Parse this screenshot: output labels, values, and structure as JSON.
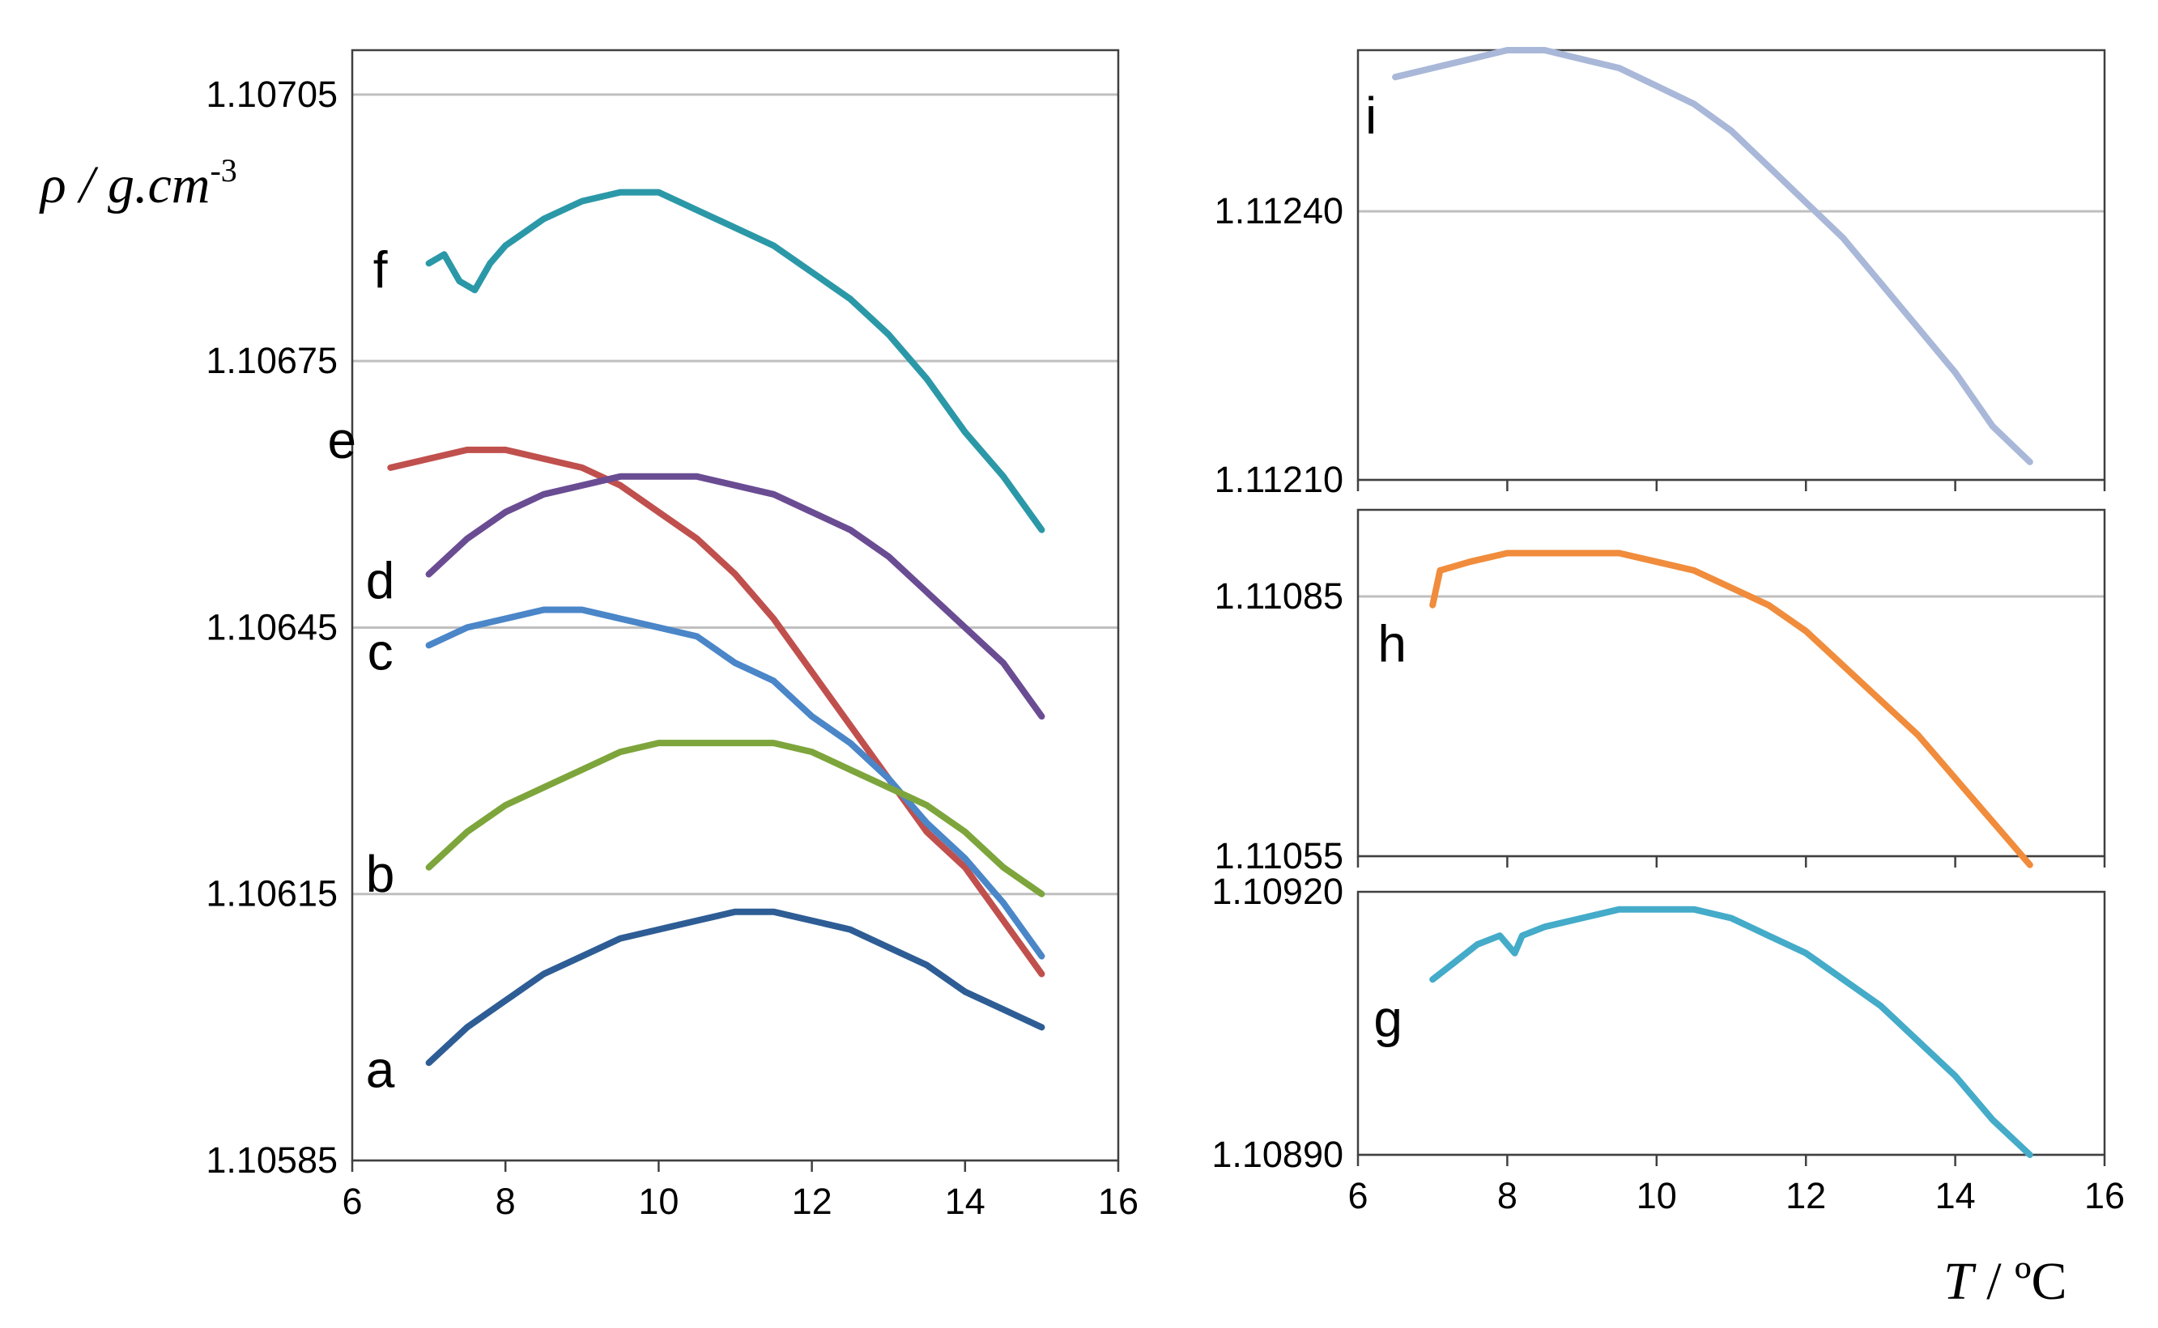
{
  "figure": {
    "ylabel": "ρ / g.cm",
    "ylabel_exp": "-3",
    "xlabel_var": "T",
    "xlabel_unit": " / ºC"
  },
  "chart_data": [
    {
      "id": "main",
      "type": "line",
      "title": "",
      "xlabel": "",
      "ylabel": "ρ / g.cm-3",
      "xlim": [
        6,
        16
      ],
      "ylim": [
        1.10585,
        1.1071
      ],
      "xticks": [
        6,
        8,
        10,
        12,
        14,
        16
      ],
      "yticks": [
        1.10585,
        1.10615,
        1.10645,
        1.10675,
        1.10705
      ],
      "ytick_labels": [
        "1.10585",
        "1.10615",
        "1.10645",
        "1.10675",
        "1.10705"
      ],
      "grid": true,
      "series": [
        {
          "name": "f",
          "label": "f",
          "color": "#2b98a8",
          "x": [
            7.0,
            7.2,
            7.4,
            7.6,
            7.8,
            8.0,
            8.5,
            9.0,
            9.5,
            10.0,
            10.5,
            11.0,
            11.5,
            12.0,
            12.5,
            13.0,
            13.5,
            14.0,
            14.5,
            15.0
          ],
          "y": [
            1.10686,
            1.10687,
            1.10684,
            1.10683,
            1.10686,
            1.10688,
            1.10691,
            1.10693,
            1.10694,
            1.10694,
            1.10692,
            1.1069,
            1.10688,
            1.10685,
            1.10682,
            1.10678,
            1.10673,
            1.10667,
            1.10662,
            1.10656
          ]
        },
        {
          "name": "e",
          "label": "e",
          "color": "#c0504d",
          "x": [
            6.5,
            7.0,
            7.5,
            8.0,
            8.5,
            9.0,
            9.5,
            10.0,
            10.5,
            11.0,
            11.5,
            12.0,
            12.5,
            13.0,
            13.5,
            14.0,
            14.5,
            15.0
          ],
          "y": [
            1.10663,
            1.10664,
            1.10665,
            1.10665,
            1.10664,
            1.10663,
            1.10661,
            1.10658,
            1.10655,
            1.10651,
            1.10646,
            1.1064,
            1.10634,
            1.10628,
            1.10622,
            1.10618,
            1.10612,
            1.10606
          ]
        },
        {
          "name": "d",
          "label": "d",
          "color": "#6a4c93",
          "x": [
            7.0,
            7.5,
            8.0,
            8.5,
            9.0,
            9.5,
            10.0,
            10.5,
            11.0,
            11.5,
            12.0,
            12.5,
            13.0,
            13.5,
            14.0,
            14.5,
            15.0
          ],
          "y": [
            1.10651,
            1.10655,
            1.10658,
            1.1066,
            1.10661,
            1.10662,
            1.10662,
            1.10662,
            1.10661,
            1.1066,
            1.10658,
            1.10656,
            1.10653,
            1.10649,
            1.10645,
            1.10641,
            1.10635
          ]
        },
        {
          "name": "c",
          "label": "c",
          "color": "#4a86c8",
          "x": [
            7.0,
            7.5,
            8.0,
            8.5,
            9.0,
            9.5,
            10.0,
            10.5,
            11.0,
            11.5,
            12.0,
            12.5,
            13.0,
            13.5,
            14.0,
            14.5,
            15.0
          ],
          "y": [
            1.10643,
            1.10645,
            1.10646,
            1.10647,
            1.10647,
            1.10646,
            1.10645,
            1.10644,
            1.10641,
            1.10639,
            1.10635,
            1.10632,
            1.10628,
            1.10623,
            1.10619,
            1.10614,
            1.10608
          ]
        },
        {
          "name": "b",
          "label": "b",
          "color": "#7da53c",
          "x": [
            7.0,
            7.5,
            8.0,
            8.5,
            9.0,
            9.5,
            10.0,
            10.5,
            11.0,
            11.5,
            12.0,
            12.5,
            13.0,
            13.5,
            14.0,
            14.5,
            15.0
          ],
          "y": [
            1.10618,
            1.10622,
            1.10625,
            1.10627,
            1.10629,
            1.10631,
            1.10632,
            1.10632,
            1.10632,
            1.10632,
            1.10631,
            1.10629,
            1.10627,
            1.10625,
            1.10622,
            1.10618,
            1.10615
          ]
        },
        {
          "name": "a",
          "label": "a",
          "color": "#2e5d95",
          "x": [
            7.0,
            7.5,
            8.0,
            8.5,
            9.0,
            9.5,
            10.0,
            10.5,
            11.0,
            11.5,
            12.0,
            12.5,
            13.0,
            13.5,
            14.0,
            14.5,
            15.0
          ],
          "y": [
            1.10596,
            1.106,
            1.10603,
            1.10606,
            1.10608,
            1.1061,
            1.10611,
            1.10612,
            1.10613,
            1.10613,
            1.10612,
            1.10611,
            1.10609,
            1.10607,
            1.10604,
            1.10602,
            1.106
          ]
        }
      ]
    },
    {
      "id": "i",
      "type": "line",
      "xlim": [
        6,
        16
      ],
      "ylim": [
        1.1121,
        1.11258
      ],
      "xticks": [
        6,
        8,
        10,
        12,
        14,
        16
      ],
      "yticks": [
        1.1121,
        1.1124
      ],
      "ytick_labels": [
        "1.11210",
        "1.11240"
      ],
      "grid": true,
      "series": [
        {
          "name": "i",
          "label": "i",
          "color": "#a9b8d8",
          "x": [
            6.5,
            7.0,
            7.5,
            8.0,
            8.5,
            9.0,
            9.5,
            10.0,
            10.5,
            11.0,
            11.5,
            12.0,
            12.5,
            13.0,
            13.5,
            14.0,
            14.5,
            15.0
          ],
          "y": [
            1.11255,
            1.11256,
            1.11257,
            1.11258,
            1.11258,
            1.11257,
            1.11256,
            1.11254,
            1.11252,
            1.11249,
            1.11245,
            1.11241,
            1.11237,
            1.11232,
            1.11227,
            1.11222,
            1.11216,
            1.11212
          ]
        }
      ]
    },
    {
      "id": "h",
      "type": "line",
      "xlim": [
        6,
        16
      ],
      "ylim": [
        1.11055,
        1.11095
      ],
      "xticks": [
        6,
        8,
        10,
        12,
        14,
        16
      ],
      "yticks": [
        1.11055,
        1.11085
      ],
      "ytick_labels": [
        "1.11055",
        "1.11085"
      ],
      "grid": true,
      "series": [
        {
          "name": "h",
          "label": "h",
          "color": "#f08c3c",
          "x": [
            7.0,
            7.1,
            7.5,
            8.0,
            8.5,
            9.0,
            9.5,
            10.0,
            10.5,
            11.0,
            11.5,
            12.0,
            12.5,
            13.0,
            13.5,
            14.0,
            14.5,
            15.0
          ],
          "y": [
            1.11084,
            1.11088,
            1.11089,
            1.1109,
            1.1109,
            1.1109,
            1.1109,
            1.11089,
            1.11088,
            1.11086,
            1.11084,
            1.11081,
            1.11077,
            1.11073,
            1.11069,
            1.11064,
            1.11059,
            1.11054
          ]
        }
      ]
    },
    {
      "id": "g",
      "type": "line",
      "xlim": [
        6,
        16
      ],
      "ylim": [
        1.1089,
        1.1092
      ],
      "xticks": [
        6,
        8,
        10,
        12,
        14,
        16
      ],
      "yticks": [
        1.1089,
        1.1092
      ],
      "ytick_labels": [
        "1.10890",
        "1.10920"
      ],
      "xtick_labels": [
        "6",
        "8",
        "10",
        "12",
        "14",
        "16"
      ],
      "grid": false,
      "series": [
        {
          "name": "g",
          "label": "g",
          "color": "#44abc9",
          "x": [
            7.0,
            7.3,
            7.6,
            7.9,
            8.1,
            8.2,
            8.5,
            9.0,
            9.5,
            10.0,
            10.5,
            11.0,
            11.5,
            12.0,
            12.5,
            13.0,
            13.5,
            14.0,
            14.5,
            15.0
          ],
          "y": [
            1.1091,
            1.10912,
            1.10914,
            1.10915,
            1.10913,
            1.10915,
            1.10916,
            1.10917,
            1.10918,
            1.10918,
            1.10918,
            1.10917,
            1.10915,
            1.10913,
            1.1091,
            1.10907,
            1.10903,
            1.10899,
            1.10894,
            1.1089
          ]
        }
      ]
    }
  ]
}
